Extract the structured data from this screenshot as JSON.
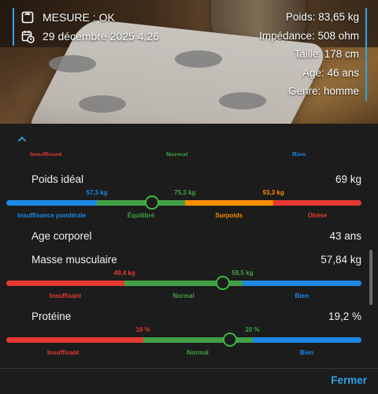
{
  "header": {
    "status": "MESURE : OK",
    "datetime": "29 décembre 2025 4:26",
    "stats": [
      "Poids: 83,65 kg",
      "Impédance: 508 ohm",
      "Taille: 178 cm",
      "Age: 46 ans",
      "Genre: homme"
    ]
  },
  "colors": {
    "red": "#e53935",
    "green": "#43a047",
    "orange": "#fb8c00",
    "blue": "#1e88e5",
    "accent": "#2fa3e8"
  },
  "panel": {
    "cut_labels": [
      "Insuffisant",
      "Normal",
      "Bien"
    ],
    "metrics": [
      {
        "label": "Poids idéal",
        "value": "69 kg",
        "thresholds": [
          "57,3 kg",
          "75,3 kg",
          "93,3 kg"
        ],
        "zones": [
          "Insuffisance pondérale",
          "Équilibré",
          "Surpoids",
          "Obèse"
        ],
        "marker_fraction": 0.41
      },
      {
        "label": "Age corporel",
        "value": "43 ans"
      },
      {
        "label": "Masse musculaire",
        "value": "57,84 kg",
        "thresholds": [
          "49,4 kg",
          "59,5 kg"
        ],
        "zones": [
          "Insuffisant",
          "Normal",
          "Bien"
        ],
        "marker_fraction": 0.61
      },
      {
        "label": "Protéine",
        "value": "19,2 %",
        "thresholds": [
          "16 %",
          "20 %"
        ],
        "zones": [
          "Insuffisant",
          "Normal",
          "Bien"
        ],
        "marker_fraction": 0.63
      }
    ],
    "close_label": "Fermer"
  }
}
